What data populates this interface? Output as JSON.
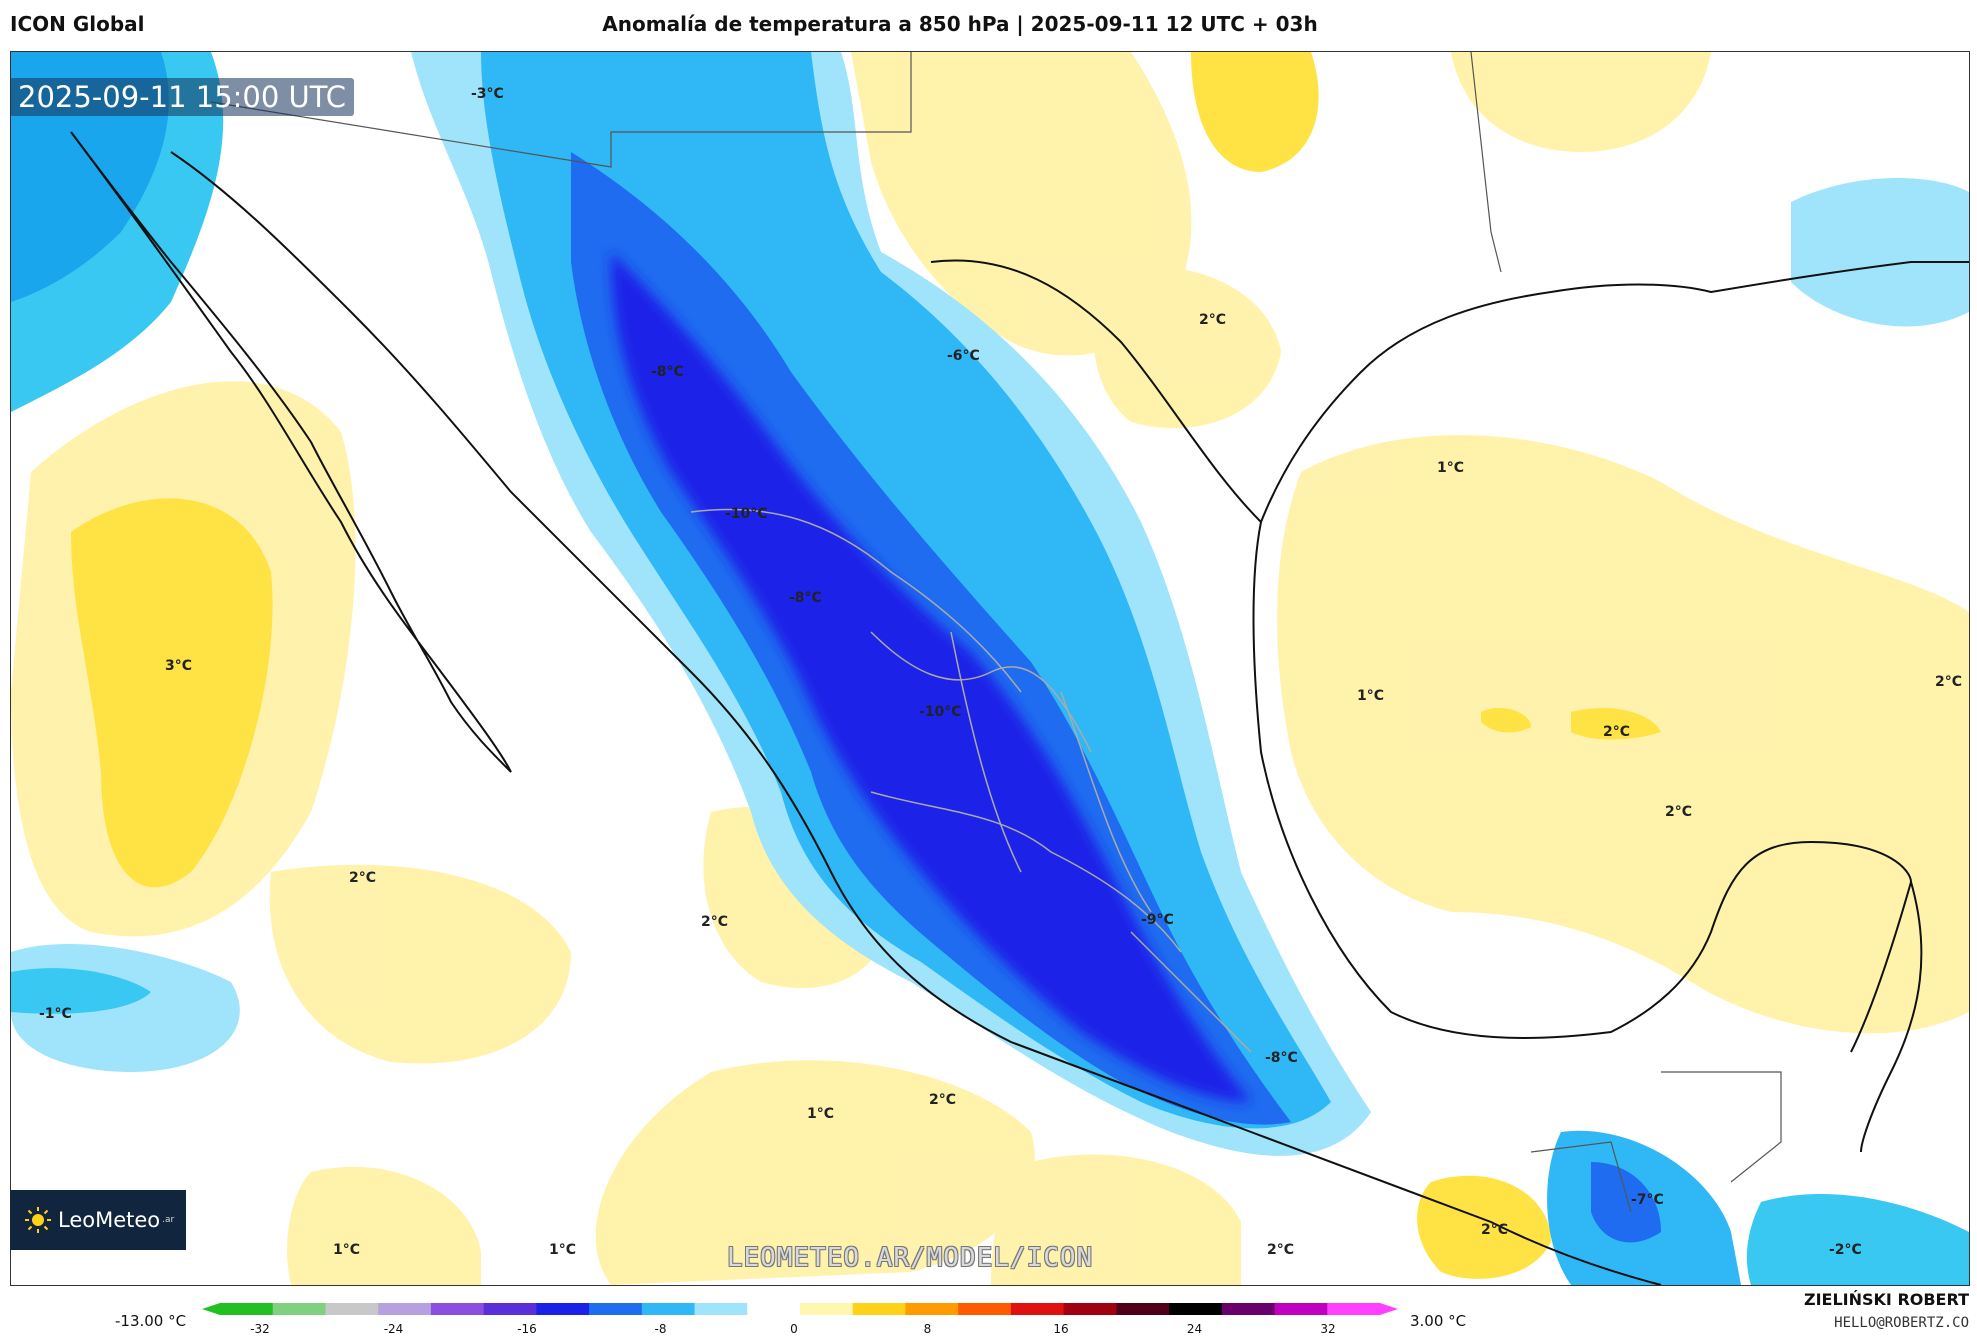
{
  "header": {
    "model": "ICON Global",
    "title": "Anomalía de temperatura a 850 hPa | 2025-09-11 12 UTC + 03h"
  },
  "map": {
    "valid_time": "2025-09-11 15:00 UTC",
    "contour_labels": [
      "-3°C",
      "2°C",
      "-6°C",
      "-8°C",
      "1°C",
      "-10°C",
      "-8°C",
      "3°C",
      "-10°C",
      "1°C",
      "2°C",
      "2°C",
      "2°C",
      "2°C",
      "2°C",
      "-9°C",
      "-1°C",
      "-8°C",
      "2°C",
      "1°C",
      "-7°C",
      "2°C",
      "1°C",
      "1°C",
      "2°C",
      "-2°C"
    ]
  },
  "branding": {
    "logo_text": "LeoMeteo",
    "logo_suffix": ".ar",
    "watermark": "LEOMETEO.AR/MODEL/ICON"
  },
  "colorbar": {
    "min_label": "-13.00 °C",
    "max_label": "3.00 °C",
    "ticks": [
      "-32",
      "-24",
      "-16",
      "-8",
      "0",
      "8",
      "16",
      "24",
      "32"
    ],
    "colors": [
      "#22c022",
      "#7fd07f",
      "#c8c8c8",
      "#b7a0e0",
      "#8a4fe0",
      "#5a2fd8",
      "#1a22e8",
      "#1f6cf0",
      "#2fb8f5",
      "#9fe4fa",
      "#ffffff",
      "#fff6b0",
      "#ffd21a",
      "#ff9a00",
      "#ff5a00",
      "#e01010",
      "#a00010",
      "#500018",
      "#000000",
      "#6a006a",
      "#c000c0",
      "#ff40ff"
    ]
  },
  "credit": {
    "name": "ZIELIŃSKI ROBERT",
    "email": "HELLO@ROBERTZ.CO"
  }
}
